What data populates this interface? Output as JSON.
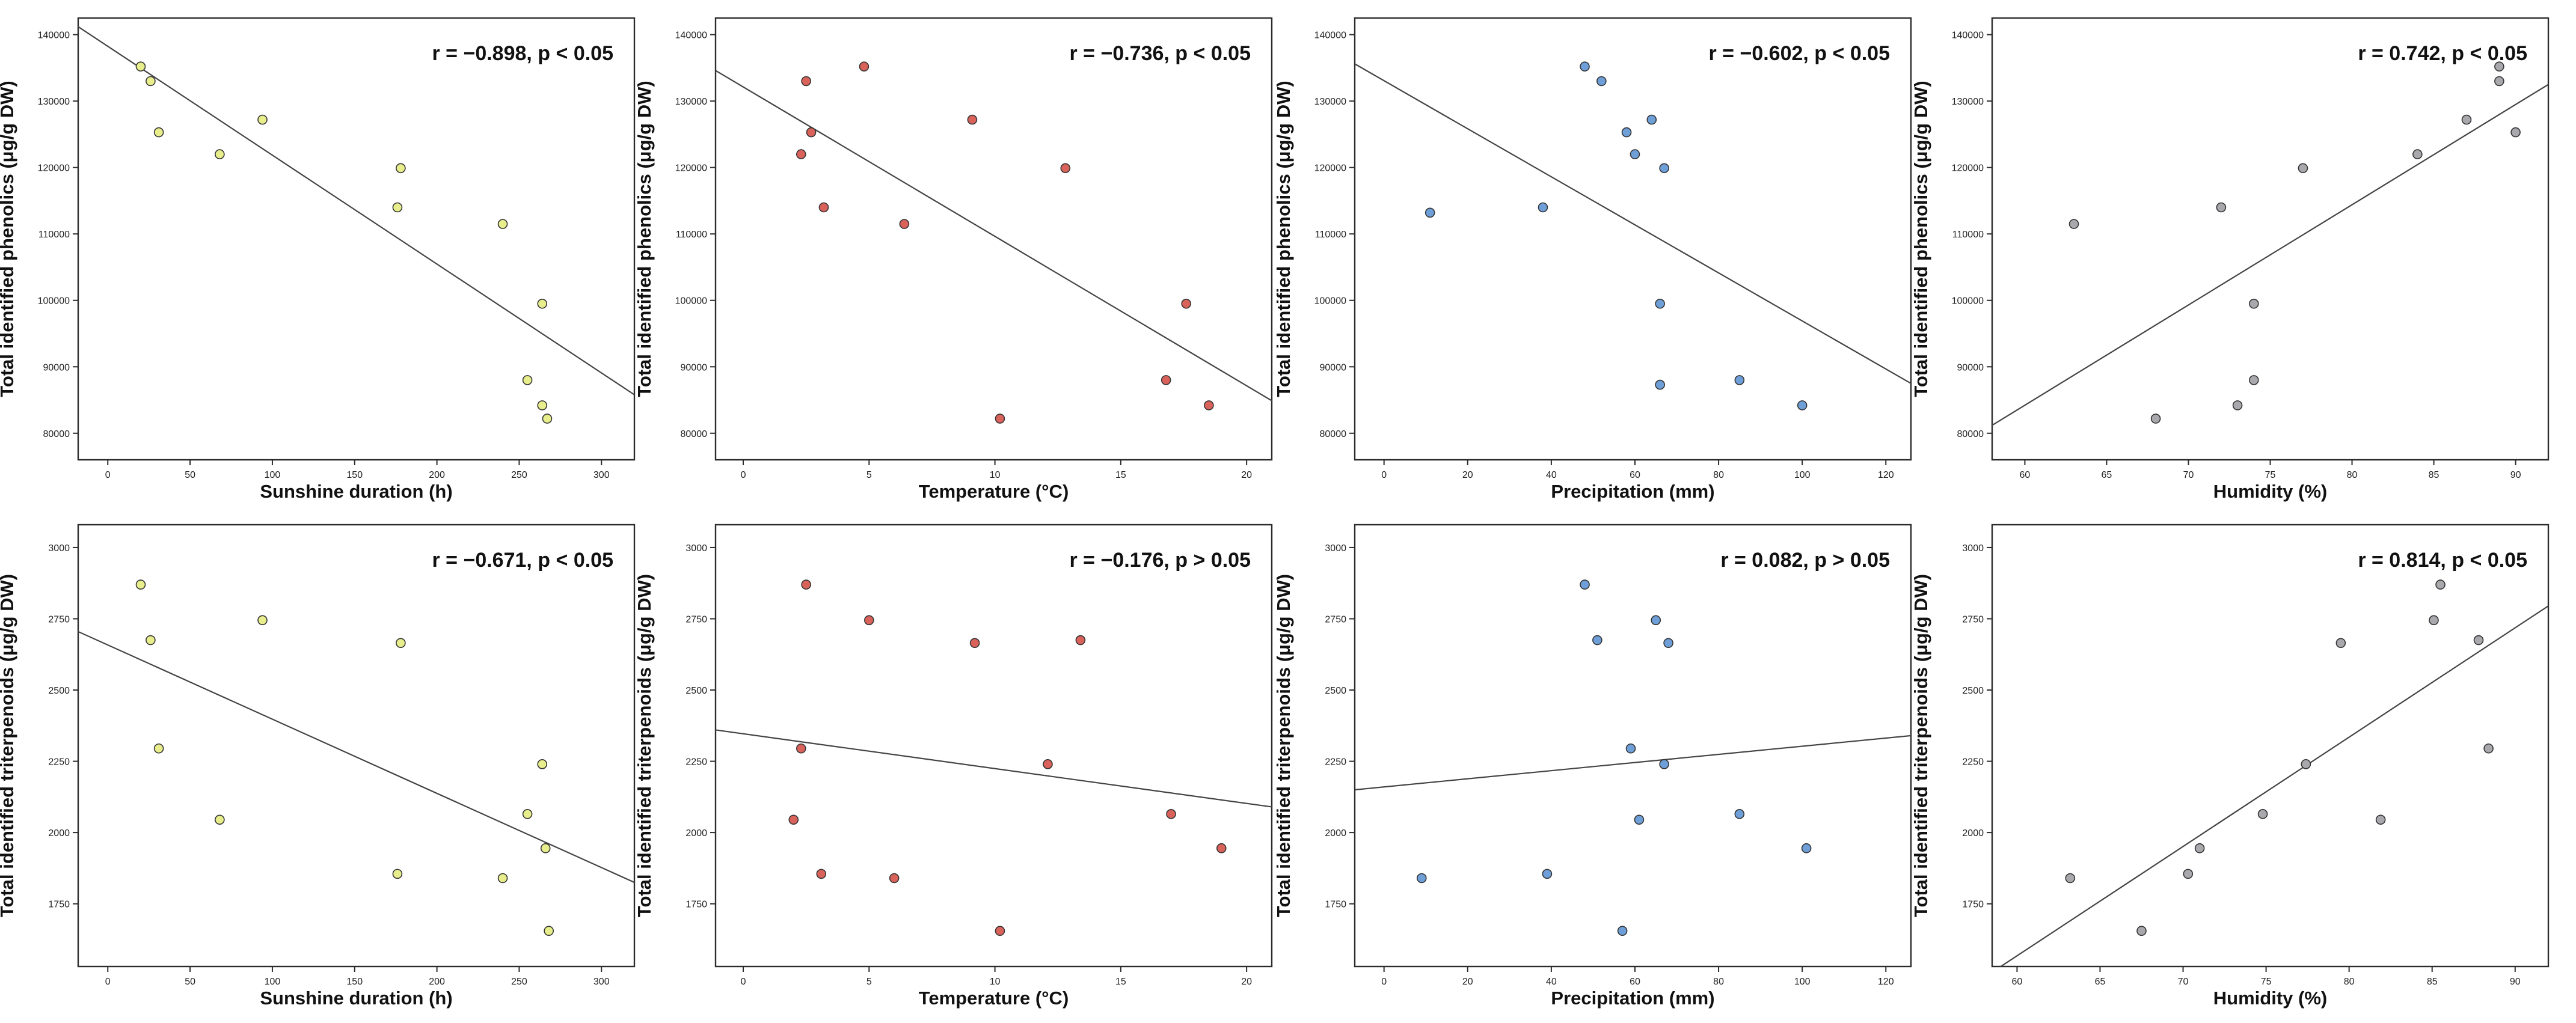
{
  "chart_data": [
    {
      "type": "scatter",
      "color": "#e8ee8c",
      "xlabel": "Sunshine duration (h)",
      "ylabel": "Total identified phenolics (μg/g DW)",
      "stat": {
        "r": "r = −0.898, ",
        "p": "p < 0.05"
      },
      "xlim": [
        -18,
        320
      ],
      "ylim": [
        76000,
        142500
      ],
      "xticks": [
        0,
        50,
        100,
        150,
        200,
        250,
        300
      ],
      "yticks": [
        80000,
        90000,
        100000,
        110000,
        120000,
        130000,
        140000
      ],
      "points": [
        [
          20,
          135200
        ],
        [
          26,
          133000
        ],
        [
          31,
          125300
        ],
        [
          68,
          122000
        ],
        [
          94,
          127200
        ],
        [
          176,
          114000
        ],
        [
          178,
          119900
        ],
        [
          240,
          111500
        ],
        [
          255,
          88000
        ],
        [
          264,
          99500
        ],
        [
          264,
          84200
        ],
        [
          267,
          82200
        ]
      ],
      "fit": [
        [
          -18,
          141200
        ],
        [
          320,
          85800
        ]
      ]
    },
    {
      "type": "scatter",
      "color": "#d9625a",
      "xlabel": "Temperature (°C)",
      "ylabel": "Total identified phenolics (μg/g DW)",
      "stat": {
        "r": "r = −0.736, ",
        "p": "p < 0.05"
      },
      "xlim": [
        -1.1,
        21
      ],
      "ylim": [
        76000,
        142500
      ],
      "xticks": [
        0,
        5,
        10,
        15,
        20
      ],
      "yticks": [
        80000,
        90000,
        100000,
        110000,
        120000,
        130000,
        140000
      ],
      "points": [
        [
          2.3,
          122000
        ],
        [
          2.5,
          133000
        ],
        [
          2.7,
          125300
        ],
        [
          3.2,
          114000
        ],
        [
          4.8,
          135200
        ],
        [
          6.4,
          111500
        ],
        [
          9.1,
          127200
        ],
        [
          10.2,
          82200
        ],
        [
          12.8,
          119900
        ],
        [
          16.8,
          88000
        ],
        [
          17.6,
          99500
        ],
        [
          18.5,
          84200
        ]
      ],
      "fit": [
        [
          -1.1,
          134600
        ],
        [
          21,
          84900
        ]
      ]
    },
    {
      "type": "scatter",
      "color": "#6f9fd8",
      "xlabel": "Precipitation (mm)",
      "ylabel": "Total identified phenolics (μg/g DW)",
      "stat": {
        "r": "r = −0.602, ",
        "p": "p < 0.05"
      },
      "xlim": [
        -7,
        126
      ],
      "ylim": [
        76000,
        142500
      ],
      "xticks": [
        0,
        20,
        40,
        60,
        80,
        100,
        120
      ],
      "yticks": [
        80000,
        90000,
        100000,
        110000,
        120000,
        130000,
        140000
      ],
      "points": [
        [
          11,
          113200
        ],
        [
          38,
          114000
        ],
        [
          48,
          135200
        ],
        [
          52,
          133000
        ],
        [
          58,
          125300
        ],
        [
          60,
          122000
        ],
        [
          64,
          127200
        ],
        [
          66,
          99500
        ],
        [
          66,
          87300
        ],
        [
          67,
          119900
        ],
        [
          85,
          88000
        ],
        [
          100,
          84200
        ]
      ],
      "fit": [
        [
          -7,
          135600
        ],
        [
          126,
          87500
        ]
      ]
    },
    {
      "type": "scatter",
      "color": "#a9a9ad",
      "xlabel": "Humidity (%)",
      "ylabel": "Total identified phenolics (μg/g DW)",
      "stat": {
        "r": "r = 0.742, ",
        "p": "p < 0.05"
      },
      "xlim": [
        58,
        92
      ],
      "ylim": [
        76000,
        142500
      ],
      "xticks": [
        60,
        65,
        70,
        75,
        80,
        85,
        90
      ],
      "yticks": [
        80000,
        90000,
        100000,
        110000,
        120000,
        130000,
        140000
      ],
      "points": [
        [
          63,
          111500
        ],
        [
          68,
          82200
        ],
        [
          72,
          114000
        ],
        [
          73,
          84200
        ],
        [
          74,
          99500
        ],
        [
          74,
          88000
        ],
        [
          77,
          119900
        ],
        [
          84,
          122000
        ],
        [
          87,
          127200
        ],
        [
          89,
          135200
        ],
        [
          89,
          133000
        ],
        [
          90,
          125300
        ]
      ],
      "fit": [
        [
          58,
          81200
        ],
        [
          92,
          132500
        ]
      ]
    },
    {
      "type": "scatter",
      "color": "#e8ee8c",
      "xlabel": "Sunshine duration (h)",
      "ylabel": "Total identified triterpenoids (μg/g DW)",
      "stat": {
        "r": "r = −0.671, ",
        "p": "p < 0.05"
      },
      "xlim": [
        -18,
        320
      ],
      "ylim": [
        1530,
        3080
      ],
      "xticks": [
        0,
        50,
        100,
        150,
        200,
        250,
        300
      ],
      "yticks": [
        1750,
        2000,
        2250,
        2500,
        2750,
        3000
      ],
      "points": [
        [
          20,
          2870
        ],
        [
          26,
          2675
        ],
        [
          31,
          2295
        ],
        [
          68,
          2045
        ],
        [
          94,
          2745
        ],
        [
          176,
          1855
        ],
        [
          178,
          2665
        ],
        [
          240,
          1840
        ],
        [
          255,
          2065
        ],
        [
          264,
          2240
        ],
        [
          266,
          1945
        ],
        [
          268,
          1655
        ]
      ],
      "fit": [
        [
          -18,
          2705
        ],
        [
          320,
          1825
        ]
      ]
    },
    {
      "type": "scatter",
      "color": "#d9625a",
      "xlabel": "Temperature (°C)",
      "ylabel": "Total identified triterpenoids (μg/g DW)",
      "stat": {
        "r": "r = −0.176, ",
        "p": "p > 0.05"
      },
      "xlim": [
        -1.1,
        21
      ],
      "ylim": [
        1530,
        3080
      ],
      "xticks": [
        0,
        5,
        10,
        15,
        20
      ],
      "yticks": [
        1750,
        2000,
        2250,
        2500,
        2750,
        3000
      ],
      "points": [
        [
          2.0,
          2045
        ],
        [
          2.3,
          2295
        ],
        [
          2.5,
          2870
        ],
        [
          3.1,
          1855
        ],
        [
          5.0,
          2745
        ],
        [
          6.0,
          1840
        ],
        [
          9.2,
          2665
        ],
        [
          10.2,
          1655
        ],
        [
          12.1,
          2240
        ],
        [
          13.4,
          2675
        ],
        [
          17.0,
          2065
        ],
        [
          19.0,
          1945
        ]
      ],
      "fit": [
        [
          -1.1,
          2360
        ],
        [
          21,
          2090
        ]
      ]
    },
    {
      "type": "scatter",
      "color": "#6f9fd8",
      "xlabel": "Precipitation (mm)",
      "ylabel": "Total identified triterpenoids (μg/g DW)",
      "stat": {
        "r": "r = 0.082, ",
        "p": "p > 0.05"
      },
      "xlim": [
        -7,
        126
      ],
      "ylim": [
        1530,
        3080
      ],
      "xticks": [
        0,
        20,
        40,
        60,
        80,
        100,
        120
      ],
      "yticks": [
        1750,
        2000,
        2250,
        2500,
        2750,
        3000
      ],
      "points": [
        [
          9,
          1840
        ],
        [
          39,
          1855
        ],
        [
          48,
          2870
        ],
        [
          51,
          2675
        ],
        [
          57,
          1655
        ],
        [
          59,
          2295
        ],
        [
          61,
          2045
        ],
        [
          65,
          2745
        ],
        [
          67,
          2240
        ],
        [
          68,
          2665
        ],
        [
          85,
          2065
        ],
        [
          101,
          1945
        ]
      ],
      "fit": [
        [
          -7,
          2150
        ],
        [
          126,
          2340
        ]
      ]
    },
    {
      "type": "scatter",
      "color": "#a9a9ad",
      "xlabel": "Humidity (%)",
      "ylabel": "Total identified triterpenoids (μg/g DW)",
      "stat": {
        "r": "r = 0.814, ",
        "p": "p < 0.05"
      },
      "xlim": [
        58.5,
        92
      ],
      "ylim": [
        1530,
        3080
      ],
      "xticks": [
        60,
        65,
        70,
        75,
        80,
        85,
        90
      ],
      "yticks": [
        1750,
        2000,
        2250,
        2500,
        2750,
        3000
      ],
      "points": [
        [
          63.2,
          1840
        ],
        [
          67.5,
          1655
        ],
        [
          70.3,
          1855
        ],
        [
          71.0,
          1945
        ],
        [
          74.8,
          2065
        ],
        [
          77.4,
          2240
        ],
        [
          79.5,
          2665
        ],
        [
          81.9,
          2045
        ],
        [
          85.1,
          2745
        ],
        [
          85.5,
          2870
        ],
        [
          87.8,
          2675
        ],
        [
          88.4,
          2295
        ]
      ],
      "fit": [
        [
          58.5,
          1510
        ],
        [
          92,
          2795
        ]
      ]
    }
  ]
}
